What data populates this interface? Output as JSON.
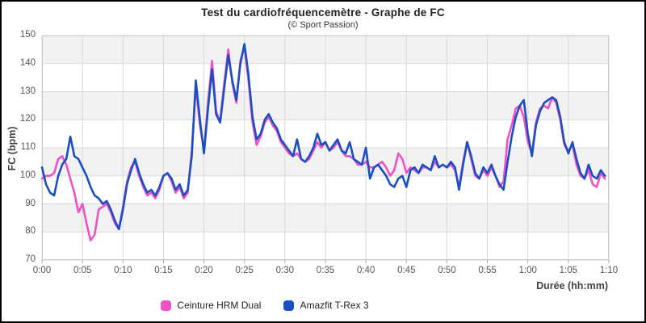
{
  "chart_data": {
    "type": "line",
    "title": "Test du cardiofréquencemètre - Graphe de FC",
    "subtitle": "(© Sport Passion)",
    "xlabel": "Durée (hh:mm)",
    "ylabel": "FC (bpm)",
    "xlim_minutes": [
      0,
      70
    ],
    "ylim": [
      70,
      150
    ],
    "y_ticks": [
      70,
      80,
      90,
      100,
      110,
      120,
      130,
      140,
      150
    ],
    "x_ticks": [
      {
        "label": "0:00",
        "min": 0
      },
      {
        "label": "0:05",
        "min": 5
      },
      {
        "label": "0:10",
        "min": 10
      },
      {
        "label": "0:15",
        "min": 15
      },
      {
        "label": "0:20",
        "min": 20
      },
      {
        "label": "0:25",
        "min": 25
      },
      {
        "label": "0:30",
        "min": 30
      },
      {
        "label": "0:35",
        "min": 35
      },
      {
        "label": "0:40",
        "min": 40
      },
      {
        "label": "0:45",
        "min": 45
      },
      {
        "label": "0:50",
        "min": 50
      },
      {
        "label": "0:55",
        "min": 55
      },
      {
        "label": "1:00",
        "min": 60
      },
      {
        "label": "1:05",
        "min": 65
      },
      {
        "label": "1:10",
        "min": 70
      }
    ],
    "grid": "on",
    "band_fill": "#f2f2f2",
    "grid_color": "#d9d9d9",
    "axis_color": "#cccccc",
    "legend_position": "bottom",
    "x_step_minutes": 0.5,
    "series": [
      {
        "name": "Ceinture HRM Dual",
        "color": "#ef52c4",
        "values": [
          99,
          100,
          100,
          101,
          106,
          107,
          104,
          99,
          94,
          87,
          90,
          83,
          77,
          79,
          88,
          89,
          90,
          87,
          83,
          81,
          89,
          98,
          103,
          105,
          100,
          96,
          93,
          94,
          92,
          95,
          100,
          101,
          98,
          94,
          96,
          92,
          94,
          109,
          132,
          118,
          109,
          126,
          141,
          123,
          119,
          133,
          145,
          133,
          126,
          141,
          146,
          134,
          119,
          111,
          114,
          119,
          121,
          118,
          116,
          112,
          110,
          108,
          107,
          108,
          106,
          105,
          106,
          109,
          112,
          110,
          112,
          109,
          110,
          112,
          109,
          107,
          107,
          106,
          104,
          104,
          105,
          103,
          103,
          104,
          105,
          103,
          100,
          102,
          108,
          106,
          101,
          103,
          102,
          101,
          103,
          103,
          102,
          105,
          103,
          104,
          103,
          104,
          102,
          96,
          105,
          112,
          106,
          100,
          99,
          102,
          100,
          103,
          100,
          96,
          98,
          113,
          118,
          124,
          125,
          121,
          112,
          108,
          119,
          124,
          125,
          124,
          128,
          126,
          120,
          111,
          109,
          111,
          104,
          100,
          99,
          102,
          97,
          96,
          101,
          99
        ]
      },
      {
        "name": "Amazfit T-Rex 3",
        "color": "#1a4fc4",
        "values": [
          103,
          97,
          94,
          93,
          100,
          104,
          106,
          114,
          107,
          106,
          103,
          100,
          96,
          93,
          92,
          90,
          91,
          88,
          84,
          81,
          88,
          97,
          102,
          106,
          101,
          97,
          94,
          95,
          93,
          96,
          100,
          101,
          99,
          95,
          97,
          93,
          95,
          107,
          134,
          120,
          108,
          124,
          138,
          122,
          119,
          131,
          143,
          134,
          127,
          140,
          147,
          136,
          121,
          113,
          115,
          120,
          122,
          119,
          117,
          113,
          111,
          109,
          107,
          113,
          106,
          105,
          107,
          110,
          115,
          111,
          112,
          109,
          111,
          113,
          109,
          108,
          112,
          106,
          105,
          104,
          110,
          99,
          103,
          104,
          102,
          100,
          97,
          96,
          99,
          100,
          96,
          102,
          103,
          101,
          104,
          103,
          102,
          107,
          103,
          104,
          103,
          105,
          103,
          95,
          104,
          112,
          107,
          101,
          99,
          103,
          101,
          104,
          100,
          97,
          95,
          105,
          114,
          121,
          125,
          127,
          115,
          107,
          118,
          123,
          126,
          127,
          128,
          127,
          121,
          112,
          108,
          112,
          106,
          101,
          99,
          104,
          100,
          99,
          102,
          100
        ]
      }
    ]
  }
}
